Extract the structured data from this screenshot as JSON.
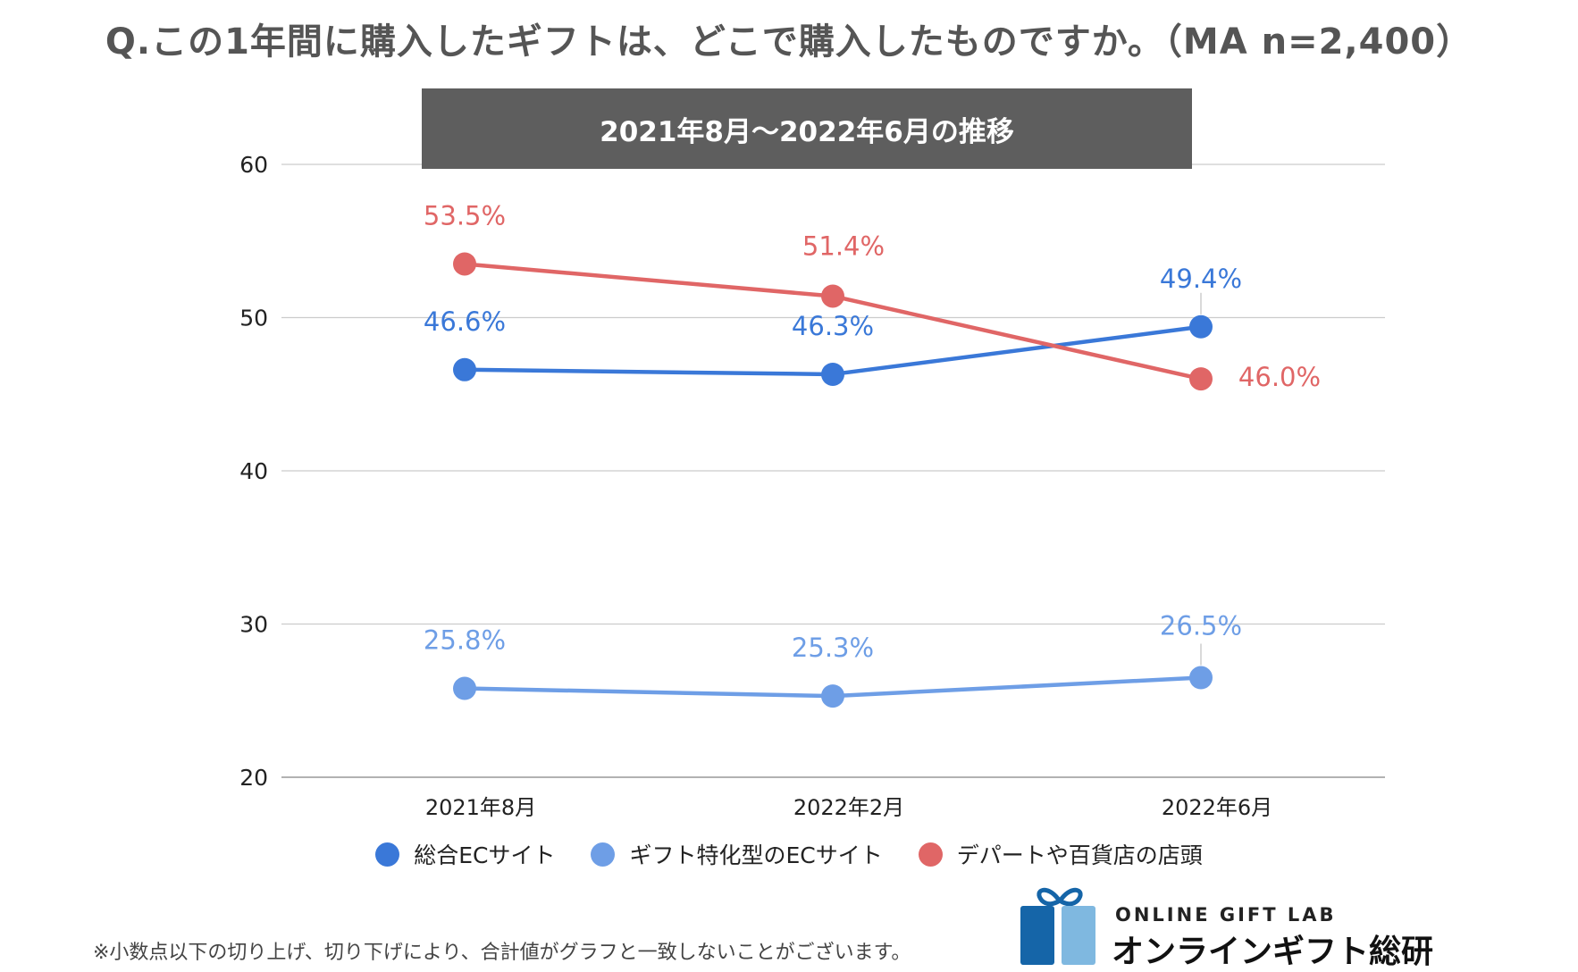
{
  "chart_data": {
    "type": "line",
    "title": "Q.この1年間に購入したギフトは、どこで購入したものですか。（MA n=2,400）",
    "subtitle": "2021年8月〜2022年6月の推移",
    "categories": [
      "2021年8月",
      "2022年2月",
      "2022年6月"
    ],
    "ylim": [
      20,
      60
    ],
    "yticks": [
      20,
      30,
      40,
      50,
      60
    ],
    "grid": true,
    "legend_position": "bottom",
    "series": [
      {
        "name": "総合ECサイト",
        "color": "#3a78d8",
        "values": [
          46.6,
          46.3,
          49.4
        ],
        "labels": [
          "46.6%",
          "46.3%",
          "49.4%"
        ]
      },
      {
        "name": "ギフト特化型のECサイト",
        "color": "#6e9ee6",
        "values": [
          25.8,
          25.3,
          26.5
        ],
        "labels": [
          "25.8%",
          "25.3%",
          "26.5%"
        ]
      },
      {
        "name": "デパートや百貨店の店頭",
        "color": "#e06666",
        "values": [
          53.5,
          51.4,
          46.0
        ],
        "labels": [
          "53.5%",
          "51.4%",
          "46.0%"
        ]
      }
    ]
  },
  "footnote": "※小数点以下の切り上げ、切り下げにより、合計値がグラフと一致しないことがございます。",
  "brand": {
    "name_en": "ONLINE GIFT LAB",
    "name_jp": "オンラインギフト総研",
    "logo_icon": "gift-box-icon",
    "logo_colors": [
      "#1565a8",
      "#7fb8e0"
    ]
  }
}
